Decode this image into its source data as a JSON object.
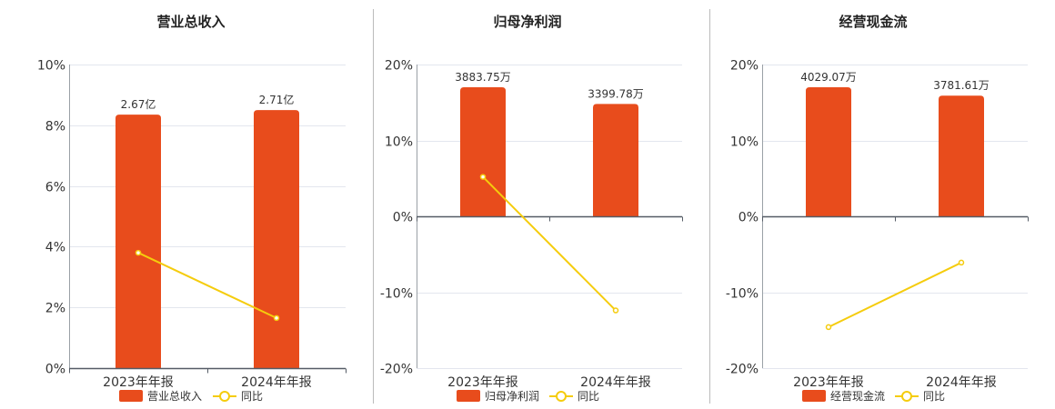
{
  "chart_data": [
    {
      "type": "bar",
      "title": "营业总收入",
      "categories": [
        "2023年年报",
        "2024年年报"
      ],
      "bar_labels": [
        "2.67亿",
        "2.71亿"
      ],
      "series": [
        {
          "name": "营业总收入",
          "type": "bar",
          "values": [
            8.35,
            8.5
          ],
          "color": "#E84C1C"
        },
        {
          "name": "同比",
          "type": "line",
          "values": [
            3.8,
            1.65
          ],
          "color": "#F5CC0D"
        }
      ],
      "ylim": [
        0,
        10
      ],
      "yticks": [
        "0%",
        "2%",
        "4%",
        "6%",
        "8%",
        "10%"
      ],
      "ytick_values": [
        0,
        2,
        4,
        6,
        8,
        10
      ],
      "grid": true,
      "legend_position": "bottom"
    },
    {
      "type": "bar",
      "title": "归母净利润",
      "categories": [
        "2023年年报",
        "2024年年报"
      ],
      "bar_labels": [
        "3883.75万",
        "3399.78万"
      ],
      "series": [
        {
          "name": "归母净利润",
          "type": "bar",
          "values": [
            17,
            14.8
          ],
          "color": "#E84C1C"
        },
        {
          "name": "同比",
          "type": "line",
          "values": [
            5.2,
            -12.4
          ],
          "color": "#F5CC0D"
        }
      ],
      "ylim": [
        -20,
        20
      ],
      "yticks": [
        "-20%",
        "-10%",
        "0%",
        "10%",
        "20%"
      ],
      "ytick_values": [
        -20,
        -10,
        0,
        10,
        20
      ],
      "grid": true,
      "legend_position": "bottom"
    },
    {
      "type": "bar",
      "title": "经营现金流",
      "categories": [
        "2023年年报",
        "2024年年报"
      ],
      "bar_labels": [
        "4029.07万",
        "3781.61万"
      ],
      "series": [
        {
          "name": "经营现金流",
          "type": "bar",
          "values": [
            17,
            15.9
          ],
          "color": "#E84C1C"
        },
        {
          "name": "同比",
          "type": "line",
          "values": [
            -14.6,
            -6.1
          ],
          "color": "#F5CC0D"
        }
      ],
      "ylim": [
        -20,
        20
      ],
      "yticks": [
        "-20%",
        "-10%",
        "0%",
        "10%",
        "20%"
      ],
      "ytick_values": [
        -20,
        -10,
        0,
        10,
        20
      ],
      "grid": true,
      "legend_position": "bottom"
    }
  ]
}
